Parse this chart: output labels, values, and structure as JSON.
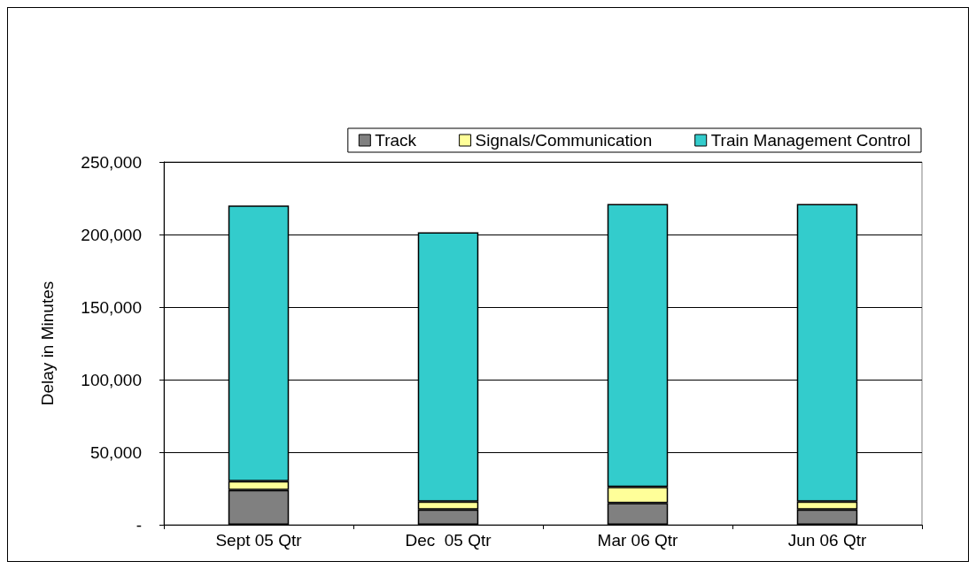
{
  "chart_data": {
    "type": "bar",
    "stacked": true,
    "ylabel": "Delay in Minutes",
    "categories": [
      "Sept 05 Qtr",
      "Dec  05 Qtr",
      "Mar 06 Qtr",
      "Jun 06 Qtr"
    ],
    "series": [
      {
        "name": "Track",
        "color": "#808080",
        "values": [
          24000,
          10500,
          15000,
          10500
        ]
      },
      {
        "name": "Signals/Communication",
        "color": "#ffff99",
        "values": [
          6000,
          5500,
          11000,
          5500
        ]
      },
      {
        "name": "Train Management Control",
        "color": "#33cccc",
        "values": [
          190000,
          185500,
          195000,
          205000
        ]
      }
    ],
    "ylim": [
      0,
      250000
    ],
    "yticks": [
      {
        "value": 0,
        "label": "-"
      },
      {
        "value": 50000,
        "label": "50,000"
      },
      {
        "value": 100000,
        "label": "100,000"
      },
      {
        "value": 150000,
        "label": "150,000"
      },
      {
        "value": 200000,
        "label": "200,000"
      },
      {
        "value": 250000,
        "label": "250,000"
      }
    ],
    "grid": "y",
    "legend": "top right"
  }
}
